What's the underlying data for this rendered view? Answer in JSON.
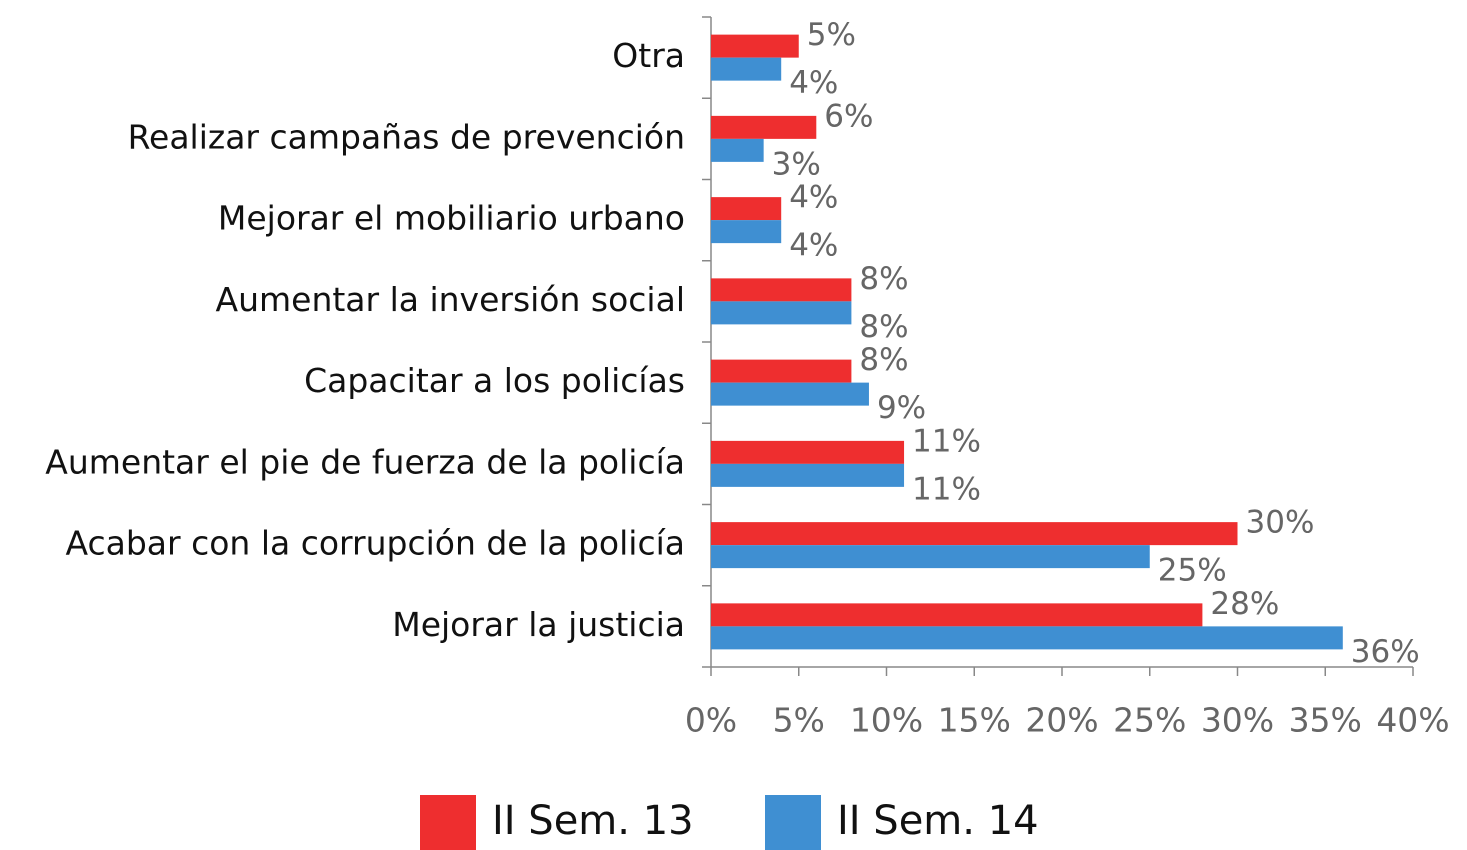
{
  "chart_data": {
    "type": "bar",
    "orientation": "horizontal",
    "categories": [
      "Otra",
      "Realizar campañas de prevención",
      "Mejorar el mobiliario urbano",
      "Aumentar la inversión social",
      "Capacitar a los policías",
      "Aumentar el pie de fuerza de la policía",
      "Acabar con la corrupción de la policía",
      "Mejorar la justicia"
    ],
    "series": [
      {
        "name": "II Sem. 13",
        "color": "#ee2e2f",
        "values": [
          5,
          6,
          4,
          8,
          8,
          11,
          30,
          28
        ],
        "value_labels": [
          "5%",
          "6%",
          "4%",
          "8%",
          "8%",
          "11%",
          "30%",
          "28%"
        ]
      },
      {
        "name": "II Sem. 14",
        "color": "#3f8fd2",
        "values": [
          4,
          3,
          4,
          8,
          9,
          11,
          25,
          36
        ],
        "value_labels": [
          "4%",
          "3%",
          "4%",
          "8%",
          "9%",
          "11%",
          "25%",
          "36%"
        ]
      }
    ],
    "xlim": [
      0,
      40
    ],
    "xticks": [
      {
        "value": 0,
        "label": "0%"
      },
      {
        "value": 5,
        "label": "5%"
      },
      {
        "value": 10,
        "label": "10%"
      },
      {
        "value": 15,
        "label": "15%"
      },
      {
        "value": 20,
        "label": "20%"
      },
      {
        "value": 25,
        "label": "25%"
      },
      {
        "value": 30,
        "label": "30%"
      },
      {
        "value": 35,
        "label": "35%"
      },
      {
        "value": 40,
        "label": "40%"
      }
    ],
    "legend": "bottom"
  }
}
